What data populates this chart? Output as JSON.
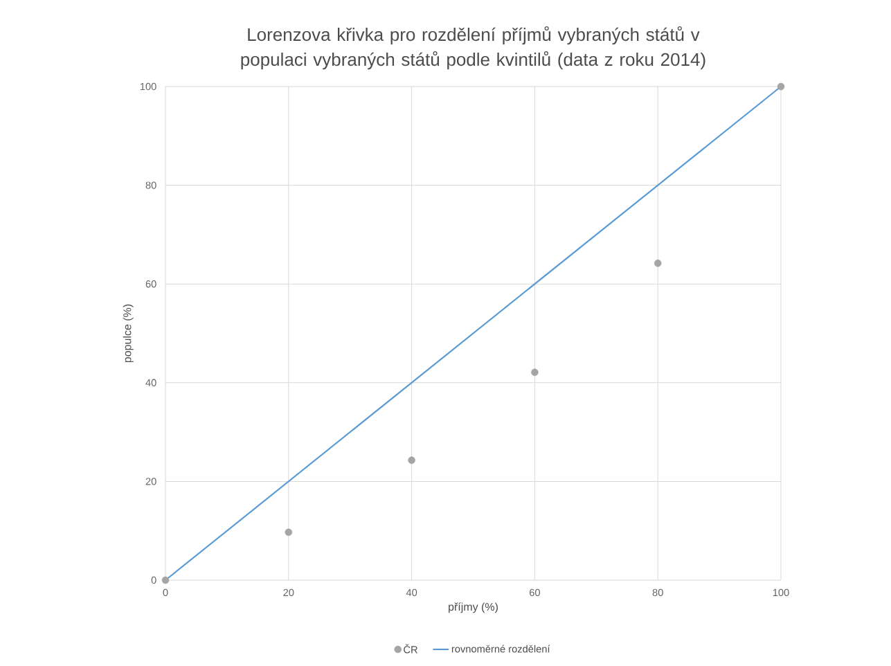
{
  "chart_data": {
    "type": "scatter",
    "title": "Lorenzova křivka pro rozdělení příjmů vybraných států v populaci vybraných států  podle kvintilů (data z roku 2014)",
    "xlabel": "příjmy (%)",
    "ylabel": "populce (%)",
    "x": [
      0,
      20,
      40,
      60,
      80,
      100
    ],
    "series": [
      {
        "name": "ČR",
        "color": "#a5a5a5",
        "marker": "circle",
        "values": [
          0,
          9.7,
          24.3,
          42.1,
          64.2,
          100
        ]
      },
      {
        "name": "rovnoměrné rozdělení",
        "type": "line",
        "color": "#5b9bd5",
        "marker": "none",
        "line_style": "solid",
        "x": [
          0,
          100
        ],
        "values": [
          0,
          100
        ]
      }
    ],
    "xlim": [
      0,
      100
    ],
    "ylim": [
      0,
      100
    ],
    "xticks": [
      0,
      20,
      40,
      60,
      80,
      100
    ],
    "yticks": [
      0,
      20,
      40,
      60,
      80,
      100
    ],
    "grid": true,
    "legend": "bottom"
  }
}
